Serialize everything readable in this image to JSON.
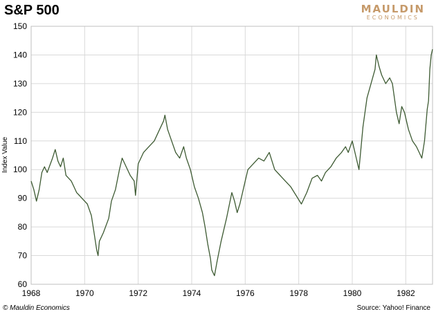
{
  "header": {
    "title": "S&P 500"
  },
  "logo": {
    "main": "MAULDIN",
    "sub": "ECONOMICS"
  },
  "footer": {
    "left": "© Mauldin Economics",
    "right": "Source: Yahoo! Finance"
  },
  "colors": {
    "line": "#3d5a32",
    "grid": "#d9d9d9",
    "axis": "#bfbfbf",
    "logo": "#c69a6a"
  },
  "chart_data": {
    "type": "line",
    "title": "S&P 500",
    "xlabel": "",
    "ylabel": "Index Value",
    "xlim": [
      1968,
      1983
    ],
    "ylim": [
      60,
      150
    ],
    "x_ticks": [
      1968,
      1970,
      1972,
      1974,
      1976,
      1978,
      1980,
      1982
    ],
    "y_ticks": [
      60,
      70,
      80,
      90,
      100,
      110,
      120,
      130,
      140,
      150
    ],
    "grid": true,
    "series": [
      {
        "x": [
          1968.0,
          1968.1,
          1968.2,
          1968.3,
          1968.4,
          1968.5,
          1968.6,
          1968.8,
          1968.9,
          1969.0,
          1969.1,
          1969.2,
          1969.3,
          1969.5,
          1969.6,
          1969.7,
          1969.8,
          1970.0,
          1970.1,
          1970.25,
          1970.35,
          1970.45,
          1970.5,
          1970.55,
          1970.7,
          1970.9,
          1971.0,
          1971.15,
          1971.3,
          1971.4,
          1971.55,
          1971.7,
          1971.85,
          1971.9,
          1972.0,
          1972.2,
          1972.4,
          1972.6,
          1972.8,
          1972.95,
          1973.0,
          1973.1,
          1973.25,
          1973.4,
          1973.55,
          1973.7,
          1973.8,
          1973.95,
          1974.1,
          1974.25,
          1974.4,
          1974.5,
          1974.6,
          1974.7,
          1974.75,
          1974.85,
          1974.95,
          1975.1,
          1975.3,
          1975.5,
          1975.6,
          1975.7,
          1975.8,
          1976.0,
          1976.1,
          1976.3,
          1976.5,
          1976.7,
          1976.9,
          1977.1,
          1977.3,
          1977.5,
          1977.7,
          1977.9,
          1978.1,
          1978.3,
          1978.5,
          1978.7,
          1978.85,
          1979.0,
          1979.2,
          1979.4,
          1979.6,
          1979.75,
          1979.85,
          1980.0,
          1980.15,
          1980.25,
          1980.4,
          1980.55,
          1980.7,
          1980.85,
          1980.9,
          1981.0,
          1981.1,
          1981.25,
          1981.4,
          1981.5,
          1981.65,
          1981.75,
          1981.85,
          1981.95,
          1982.1,
          1982.25,
          1982.4,
          1982.5,
          1982.6,
          1982.7,
          1982.8,
          1982.85,
          1982.9,
          1982.95,
          1983.0
        ],
        "values": [
          96,
          93,
          89,
          93,
          99,
          101,
          99,
          104,
          107,
          103,
          101,
          104,
          98,
          96,
          94,
          92,
          91,
          89,
          88,
          84,
          78,
          72,
          70,
          75,
          78,
          83,
          89,
          93,
          100,
          104,
          101,
          98,
          96,
          91,
          102,
          106,
          108,
          110,
          114,
          117,
          119,
          114,
          110,
          106,
          104,
          108,
          104,
          100,
          94,
          90,
          85,
          80,
          74,
          69,
          65,
          63,
          68,
          75,
          83,
          92,
          89,
          85,
          88,
          96,
          100,
          102,
          104,
          103,
          106,
          100,
          98,
          96,
          94,
          91,
          88,
          92,
          97,
          98,
          96,
          99,
          101,
          104,
          106,
          108,
          106,
          110,
          104,
          100,
          115,
          125,
          130,
          135,
          140,
          136,
          133,
          130,
          132,
          130,
          120,
          116,
          122,
          120,
          114,
          110,
          108,
          106,
          104,
          110,
          121,
          124,
          135,
          140,
          142
        ]
      }
    ]
  }
}
